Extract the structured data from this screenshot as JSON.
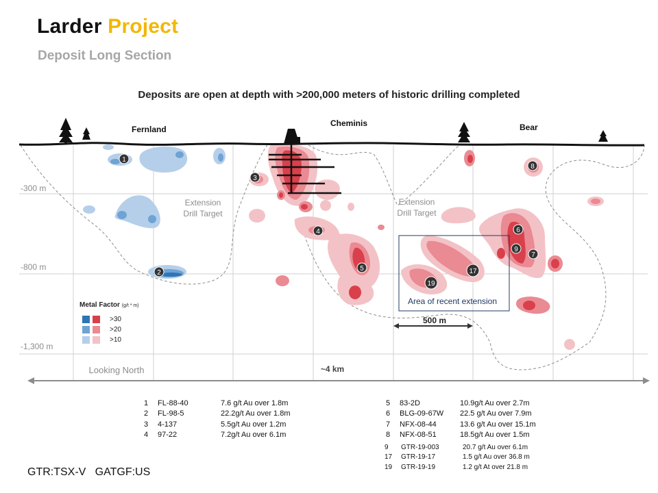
{
  "header": {
    "title_main": "Larder",
    "title_accent": "Project",
    "subtitle": "Deposit Long Section",
    "headline": "Deposits are open at depth with >200,000 meters of historic drilling completed"
  },
  "section": {
    "deposits": [
      "Fernland",
      "Cheminis",
      "Bear"
    ],
    "depth_labels": [
      "-300 m",
      "-800 m",
      "-1,300 m"
    ],
    "extension_targets": [
      {
        "line1": "Extension",
        "line2": "Drill Target"
      },
      {
        "line1": "Extension",
        "line2": "Drill Target"
      }
    ],
    "recent_extension_label": "Area of recent extension",
    "scale_label": "500 m",
    "width_label": "~4 km",
    "view_label": "Looking North",
    "hole_markers": [
      "1",
      "2",
      "3",
      "4",
      "5",
      "6",
      "7",
      "8",
      "9",
      "17",
      "19"
    ]
  },
  "legend": {
    "title": "Metal Factor",
    "unit": "(g/t * m)",
    "classes": [
      {
        "label": ">30",
        "blue": "#2e75b6",
        "red": "#d9404b"
      },
      {
        "label": ">20",
        "blue": "#6fa3d4",
        "red": "#ea8a93"
      },
      {
        "label": ">10",
        "blue": "#b5cfea",
        "red": "#f3c2c6"
      }
    ]
  },
  "drill_results_left": [
    {
      "num": "1",
      "hole": "FL-88-40",
      "result": "7.6 g/t Au over 1.8m"
    },
    {
      "num": "2",
      "hole": "FL-98-5",
      "result": "22.2g/t Au over 1.8m"
    },
    {
      "num": "3",
      "hole": "4-137",
      "result": "5.5g/t Au over 1.2m"
    },
    {
      "num": "4",
      "hole": "97-22",
      "result": "7.2g/t Au over 6.1m"
    }
  ],
  "drill_results_right": [
    {
      "num": "5",
      "hole": "83-2D",
      "result": "10.9g/t Au over 2.7m"
    },
    {
      "num": "6",
      "hole": "BLG-09-67W",
      "result": "22.5 g/t Au over 7.9m"
    },
    {
      "num": "7",
      "hole": "NFX-08-44",
      "result": "13.6 g/t Au over 15.1m"
    },
    {
      "num": "8",
      "hole": "NFX-08-51",
      "result": "18.5g/t Au over 1.5m"
    }
  ],
  "drill_results_recent": [
    {
      "num": "9",
      "hole": "GTR-19-003",
      "result": "20.7 g/t Au over 6.1m"
    },
    {
      "num": "17",
      "hole": "GTR-19-17",
      "result": "1.5 g/t Au over 36.8 m"
    },
    {
      "num": "19",
      "hole": "GTR-19-19",
      "result": "1.2 g/t At over 21.8 m"
    }
  ],
  "footer": {
    "ticker": "GTR:TSX-V   GATGF:US"
  },
  "colors": {
    "accent": "#f2b705",
    "blue_high": "#2e75b6",
    "red_high": "#d9404b",
    "grid": "#c8c8c8",
    "box": "#1f3864"
  }
}
